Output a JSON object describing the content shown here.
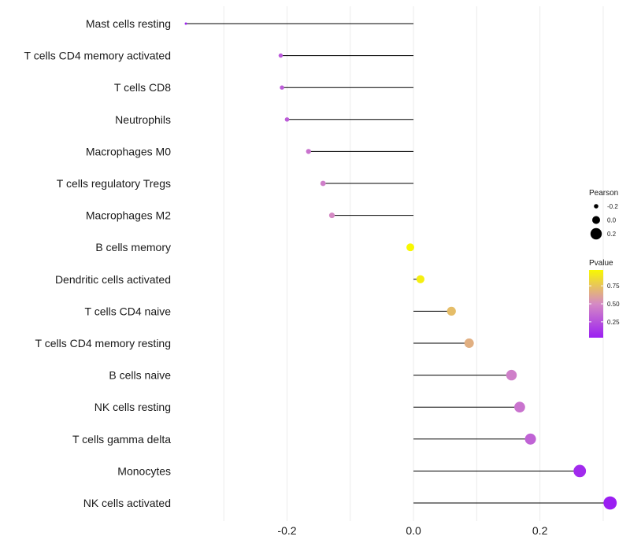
{
  "chart_data": {
    "type": "lollipop",
    "orientation": "horizontal",
    "title": "",
    "xlabel": "",
    "ylabel": "",
    "xlim": [
      -0.37,
      0.33
    ],
    "x_ticks": [
      -0.2,
      0.0,
      0.2
    ],
    "x_tick_labels": [
      "-0.2",
      "0.0",
      "0.2"
    ],
    "grid": true,
    "colors": {
      "low": "#9b1ff2",
      "mid": "#d58ac4",
      "high": "#f8f800",
      "stem": "#000000"
    },
    "categories": [
      "Mast cells resting",
      "T cells CD4 memory activated",
      "T cells CD8",
      "Neutrophils",
      "Macrophages M0",
      "T cells regulatory  Tregs ",
      "Macrophages M2",
      "B cells memory",
      "Dendritic cells activated",
      "T cells CD4 naive",
      "T cells CD4 memory resting",
      "B cells naive",
      "NK cells resting",
      "T cells gamma delta",
      "Monocytes",
      "NK cells activated"
    ],
    "pearson": [
      -0.36,
      -0.21,
      -0.208,
      -0.2,
      -0.166,
      -0.143,
      -0.129,
      -0.005,
      0.011,
      0.06,
      0.088,
      0.155,
      0.168,
      0.185,
      0.263,
      0.311
    ],
    "pvalue": [
      0.05,
      0.28,
      0.3,
      0.3,
      0.4,
      0.45,
      0.5,
      0.97,
      0.93,
      0.72,
      0.66,
      0.45,
      0.4,
      0.33,
      0.08,
      0.03
    ],
    "legend": {
      "position": "right",
      "size": {
        "title": "Pearson",
        "labels": [
          "-0.2",
          "0.0",
          "0.2"
        ],
        "values": [
          -0.2,
          0.0,
          0.2
        ]
      },
      "color": {
        "title": "Pvalue",
        "labels": [
          "0.75",
          "0.50",
          "0.25"
        ],
        "values": [
          0.75,
          0.5,
          0.25
        ],
        "range": [
          0.03,
          0.97
        ]
      }
    }
  }
}
